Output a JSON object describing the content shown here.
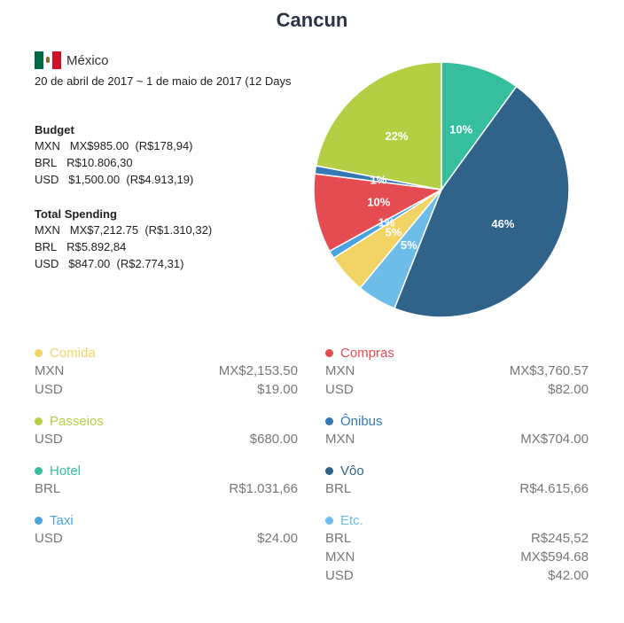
{
  "title": "Cancun",
  "country": {
    "name": "México",
    "flag_icon": "mexico-flag-icon"
  },
  "dates": "20 de abril de 2017 ~ 1 de maio de 2017 (12 Days",
  "budget": {
    "heading": "Budget",
    "lines": [
      {
        "cur": "MXN",
        "amount": "MX$985.00",
        "converted": "(R$178,94)"
      },
      {
        "cur": "BRL",
        "amount": "R$10.806,30",
        "converted": ""
      },
      {
        "cur": "USD",
        "amount": "$1,500.00",
        "converted": "(R$4.913,19)"
      }
    ]
  },
  "spending": {
    "heading": "Total Spending",
    "lines": [
      {
        "cur": "MXN",
        "amount": "MX$7,212.75",
        "converted": "(R$1.310,32)"
      },
      {
        "cur": "BRL",
        "amount": "R$5.892,84",
        "converted": ""
      },
      {
        "cur": "USD",
        "amount": "$847.00",
        "converted": "(R$2.774,31)"
      }
    ]
  },
  "chart_data": {
    "type": "pie",
    "title": "Cancun",
    "start": "top, clockwise",
    "slices": [
      {
        "label": "Hotel",
        "value": 10,
        "color": "#36bf9d",
        "display": "10%"
      },
      {
        "label": "Vôo",
        "value": 46,
        "color": "#2f6389",
        "display": "46%"
      },
      {
        "label": "Etc.",
        "value": 5,
        "color": "#6ebde9",
        "display": "5%"
      },
      {
        "label": "Comida",
        "value": 5,
        "color": "#f2d466",
        "display": "5%"
      },
      {
        "label": "Taxi",
        "value": 1,
        "color": "#4aa3e0",
        "display": "1%"
      },
      {
        "label": "Compras",
        "value": 10,
        "color": "#e54c52",
        "display": "10%"
      },
      {
        "label": "Ônibus",
        "value": 1,
        "color": "#3479b6",
        "display": "1%"
      },
      {
        "label": "Passeios",
        "value": 22,
        "color": "#b5cf45",
        "display": "22%"
      }
    ]
  },
  "legend_left": [
    {
      "name": "Comida",
      "color": "#f2d466",
      "rows": [
        {
          "cur": "MXN",
          "amount": "MX$2,153.50"
        },
        {
          "cur": "USD",
          "amount": "$19.00"
        }
      ]
    },
    {
      "name": "Passeios",
      "color": "#b5cf45",
      "rows": [
        {
          "cur": "USD",
          "amount": "$680.00"
        }
      ]
    },
    {
      "name": "Hotel",
      "color": "#36bf9d",
      "rows": [
        {
          "cur": "BRL",
          "amount": "R$1.031,66"
        }
      ]
    },
    {
      "name": "Taxi",
      "color": "#4aa3e0",
      "rows": [
        {
          "cur": "USD",
          "amount": "$24.00"
        }
      ]
    }
  ],
  "legend_right": [
    {
      "name": "Compras",
      "color": "#e54c52",
      "rows": [
        {
          "cur": "MXN",
          "amount": "MX$3,760.57"
        },
        {
          "cur": "USD",
          "amount": "$82.00"
        }
      ]
    },
    {
      "name": "Ônibus",
      "color": "#3479b6",
      "rows": [
        {
          "cur": "MXN",
          "amount": "MX$704.00"
        }
      ]
    },
    {
      "name": "Vôo",
      "color": "#2f6389",
      "rows": [
        {
          "cur": "BRL",
          "amount": "R$4.615,66"
        }
      ]
    },
    {
      "name": "Etc.",
      "color": "#6ebde9",
      "rows": [
        {
          "cur": "BRL",
          "amount": "R$245,52"
        },
        {
          "cur": "MXN",
          "amount": "MX$594.68"
        },
        {
          "cur": "USD",
          "amount": "$42.00"
        }
      ]
    }
  ]
}
